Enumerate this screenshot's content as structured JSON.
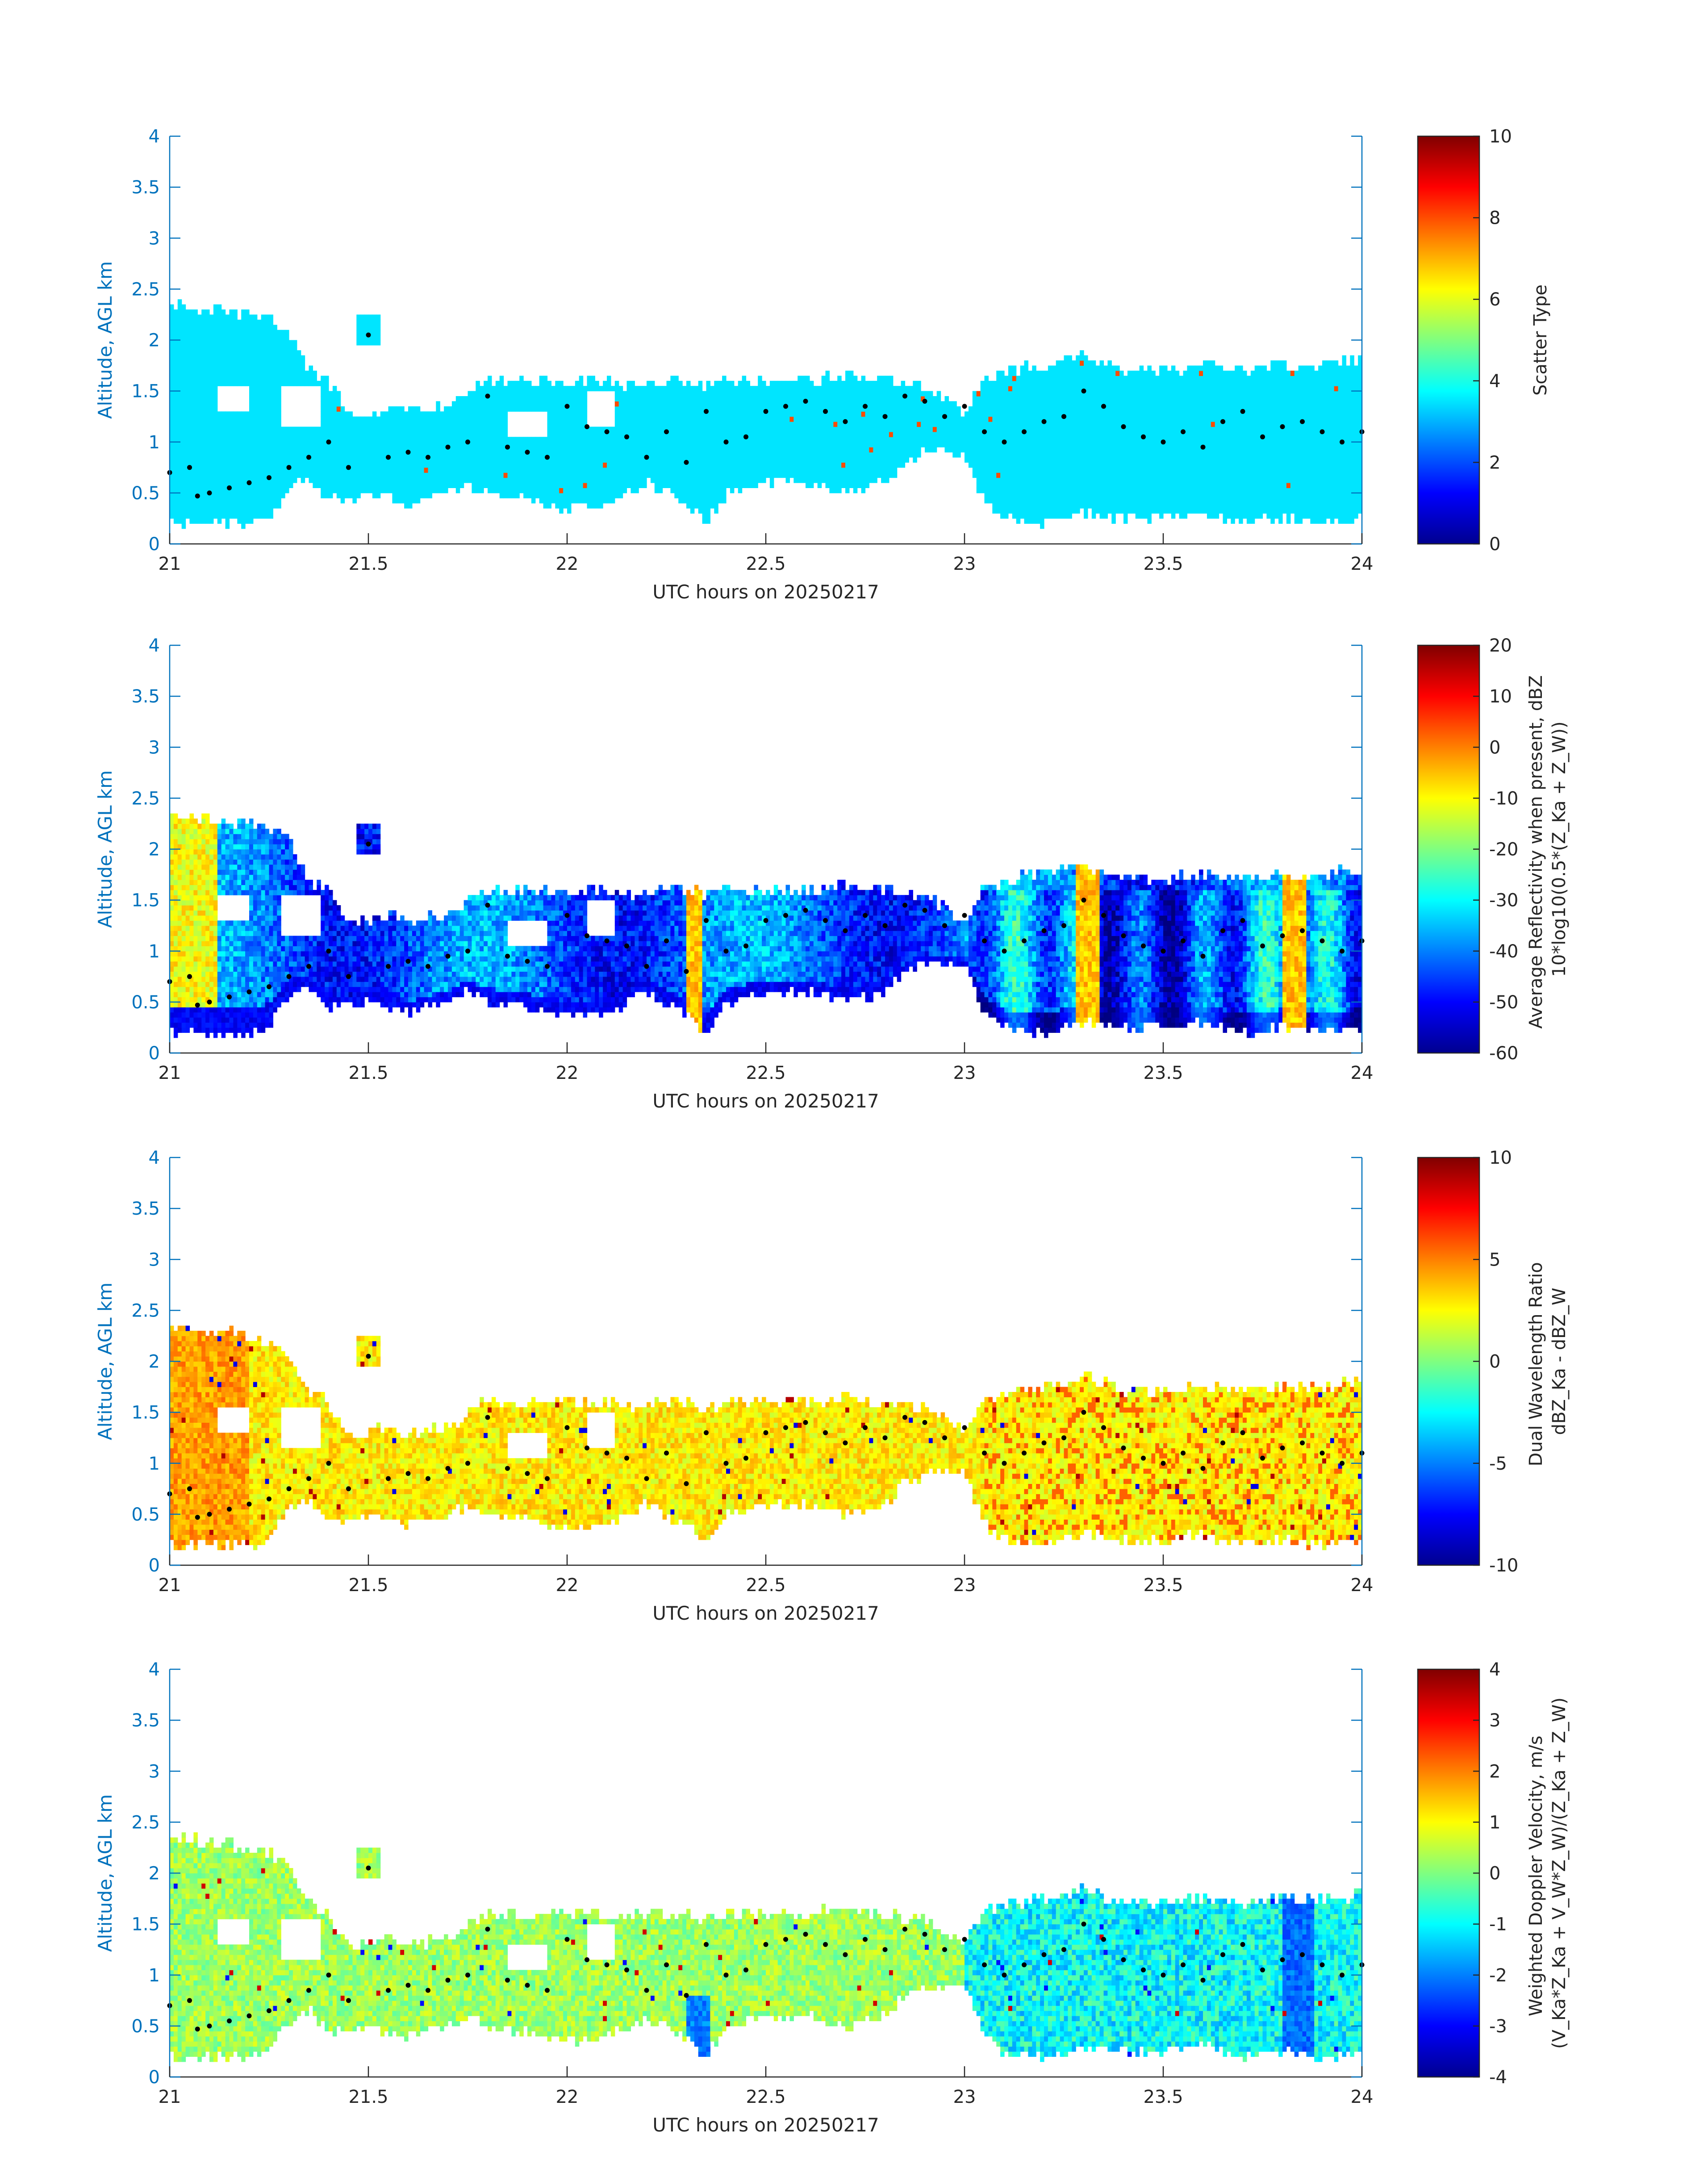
{
  "accent_colors": {
    "axis": "#0072BD",
    "label": "#262626",
    "marker": "#000000"
  },
  "chart_data": [
    {
      "type": "heatmap",
      "title": "",
      "xlabel": "UTC hours on 20250217",
      "ylabel": "Altitude, AGL km",
      "xlim": [
        21,
        24
      ],
      "ylim": [
        0,
        4
      ],
      "x_ticks": [
        21,
        21.5,
        22,
        22.5,
        23,
        23.5,
        24
      ],
      "y_ticks": [
        0,
        0.5,
        1,
        1.5,
        2,
        2.5,
        3,
        3.5,
        4
      ],
      "colorbar": {
        "label_lines": [
          "Scatter Type"
        ],
        "clim": [
          0,
          10
        ],
        "ticks": [
          0,
          2,
          4,
          6,
          8,
          10
        ],
        "colormap": "jet"
      },
      "field": "scatter_type",
      "value_note": "cloud region mostly scatter type ~3.5; few cells ~8"
    },
    {
      "type": "heatmap",
      "title": "",
      "xlabel": "UTC hours on 20250217",
      "ylabel": "Altitude, AGL km",
      "xlim": [
        21,
        24
      ],
      "ylim": [
        0,
        4
      ],
      "x_ticks": [
        21,
        21.5,
        22,
        22.5,
        23,
        23.5,
        24
      ],
      "y_ticks": [
        0,
        0.5,
        1,
        1.5,
        2,
        2.5,
        3,
        3.5,
        4
      ],
      "colorbar": {
        "label_lines": [
          "Average Reflectivity when present, dBZ",
          "10*log10(0.5*(Z_Ka + Z_W))"
        ],
        "clim": [
          -60,
          20
        ],
        "ticks": [
          -60,
          -50,
          -40,
          -30,
          -20,
          -10,
          0,
          10,
          20
        ],
        "colormap": "jet"
      },
      "field": "reflectivity"
    },
    {
      "type": "heatmap",
      "title": "",
      "xlabel": "UTC hours on 20250217",
      "ylabel": "Altitude, AGL km",
      "xlim": [
        21,
        24
      ],
      "ylim": [
        0,
        4
      ],
      "x_ticks": [
        21,
        21.5,
        22,
        22.5,
        23,
        23.5,
        24
      ],
      "y_ticks": [
        0,
        0.5,
        1,
        1.5,
        2,
        2.5,
        3,
        3.5,
        4
      ],
      "colorbar": {
        "label_lines": [
          "Dual Wavelength Ratio",
          "dBZ_Ka - dBZ_W"
        ],
        "clim": [
          -10,
          10
        ],
        "ticks": [
          -10,
          -5,
          0,
          5,
          10
        ],
        "colormap": "jet"
      },
      "field": "dwr"
    },
    {
      "type": "heatmap",
      "title": "",
      "xlabel": "UTC hours on 20250217",
      "ylabel": "Altitude, AGL km",
      "xlim": [
        21,
        24
      ],
      "ylim": [
        0,
        4
      ],
      "x_ticks": [
        21,
        21.5,
        22,
        22.5,
        23,
        23.5,
        24
      ],
      "y_ticks": [
        0,
        0.5,
        1,
        1.5,
        2,
        2.5,
        3,
        3.5,
        4
      ],
      "colorbar": {
        "label_lines": [
          "Weighted Doppler Velocity, m/s",
          "(V_Ka*Z_Ka + V_W*Z_W)/(Z_Ka + Z_W)"
        ],
        "clim": [
          -4,
          4
        ],
        "ticks": [
          -4,
          -3,
          -2,
          -1,
          0,
          1,
          2,
          3,
          4
        ],
        "colormap": "jet"
      },
      "field": "velocity"
    }
  ],
  "cloud_profile": {
    "time": [
      21.0,
      21.1,
      21.2,
      21.25,
      21.3,
      21.35,
      21.4,
      21.45,
      21.5,
      21.55,
      21.6,
      21.7,
      21.75,
      21.8,
      21.9,
      22.0,
      22.1,
      22.15,
      22.2,
      22.3,
      22.35,
      22.4,
      22.5,
      22.6,
      22.7,
      22.8,
      22.85,
      22.9,
      23.0,
      23.05,
      23.1,
      23.2,
      23.3,
      23.4,
      23.5,
      23.6,
      23.7,
      23.8,
      23.9,
      24.0
    ],
    "top_km": [
      2.35,
      2.3,
      2.25,
      2.2,
      2.1,
      1.7,
      1.6,
      1.3,
      1.3,
      1.35,
      1.3,
      1.35,
      1.5,
      1.6,
      1.6,
      1.6,
      1.6,
      1.55,
      1.6,
      1.6,
      1.55,
      1.6,
      1.6,
      1.6,
      1.65,
      1.6,
      1.55,
      1.55,
      1.3,
      1.6,
      1.7,
      1.75,
      1.85,
      1.7,
      1.7,
      1.75,
      1.7,
      1.75,
      1.75,
      1.8
    ],
    "base_km": [
      0.2,
      0.2,
      0.2,
      0.25,
      0.55,
      0.65,
      0.45,
      0.45,
      0.5,
      0.45,
      0.4,
      0.5,
      0.6,
      0.5,
      0.45,
      0.35,
      0.4,
      0.5,
      0.6,
      0.4,
      0.2,
      0.5,
      0.6,
      0.6,
      0.5,
      0.6,
      0.8,
      0.9,
      0.9,
      0.4,
      0.25,
      0.2,
      0.3,
      0.25,
      0.25,
      0.3,
      0.2,
      0.25,
      0.2,
      0.25
    ],
    "gap_holes": [
      {
        "t": [
          21.28,
          21.38
        ],
        "z": [
          1.15,
          1.55
        ]
      },
      {
        "t": [
          21.12,
          21.2
        ],
        "z": [
          1.3,
          1.55
        ]
      },
      {
        "t": [
          22.05,
          22.12
        ],
        "z": [
          1.15,
          1.5
        ]
      },
      {
        "t": [
          21.85,
          21.95
        ],
        "z": [
          1.05,
          1.3
        ]
      }
    ],
    "blobs": [
      {
        "t": [
          21.47,
          21.53
        ],
        "z": [
          1.95,
          2.25
        ]
      }
    ],
    "marker_points": [
      [
        21.0,
        0.7
      ],
      [
        21.05,
        0.75
      ],
      [
        21.07,
        0.47
      ],
      [
        21.1,
        0.5
      ],
      [
        21.15,
        0.55
      ],
      [
        21.2,
        0.6
      ],
      [
        21.25,
        0.65
      ],
      [
        21.3,
        0.75
      ],
      [
        21.35,
        0.85
      ],
      [
        21.4,
        1.0
      ],
      [
        21.45,
        0.75
      ],
      [
        21.5,
        2.05
      ],
      [
        21.55,
        0.85
      ],
      [
        21.6,
        0.9
      ],
      [
        21.65,
        0.85
      ],
      [
        21.7,
        0.95
      ],
      [
        21.75,
        1.0
      ],
      [
        21.8,
        1.45
      ],
      [
        21.85,
        0.95
      ],
      [
        21.9,
        0.9
      ],
      [
        21.95,
        0.85
      ],
      [
        22.0,
        1.35
      ],
      [
        22.05,
        1.15
      ],
      [
        22.1,
        1.1
      ],
      [
        22.15,
        1.05
      ],
      [
        22.2,
        0.85
      ],
      [
        22.25,
        1.1
      ],
      [
        22.3,
        0.8
      ],
      [
        22.35,
        1.3
      ],
      [
        22.4,
        1.0
      ],
      [
        22.45,
        1.05
      ],
      [
        22.5,
        1.3
      ],
      [
        22.55,
        1.35
      ],
      [
        22.6,
        1.4
      ],
      [
        22.65,
        1.3
      ],
      [
        22.7,
        1.2
      ],
      [
        22.75,
        1.35
      ],
      [
        22.8,
        1.25
      ],
      [
        22.85,
        1.45
      ],
      [
        22.9,
        1.4
      ],
      [
        22.95,
        1.25
      ],
      [
        23.0,
        1.35
      ],
      [
        23.05,
        1.1
      ],
      [
        23.1,
        1.0
      ],
      [
        23.15,
        1.1
      ],
      [
        23.2,
        1.2
      ],
      [
        23.25,
        1.25
      ],
      [
        23.3,
        1.5
      ],
      [
        23.35,
        1.35
      ],
      [
        23.4,
        1.15
      ],
      [
        23.45,
        1.05
      ],
      [
        23.5,
        1.0
      ],
      [
        23.55,
        1.1
      ],
      [
        23.6,
        0.95
      ],
      [
        23.65,
        1.2
      ],
      [
        23.7,
        1.3
      ],
      [
        23.75,
        1.05
      ],
      [
        23.8,
        1.15
      ],
      [
        23.85,
        1.2
      ],
      [
        23.9,
        1.1
      ],
      [
        23.95,
        1.0
      ],
      [
        24.0,
        1.1
      ]
    ]
  }
}
